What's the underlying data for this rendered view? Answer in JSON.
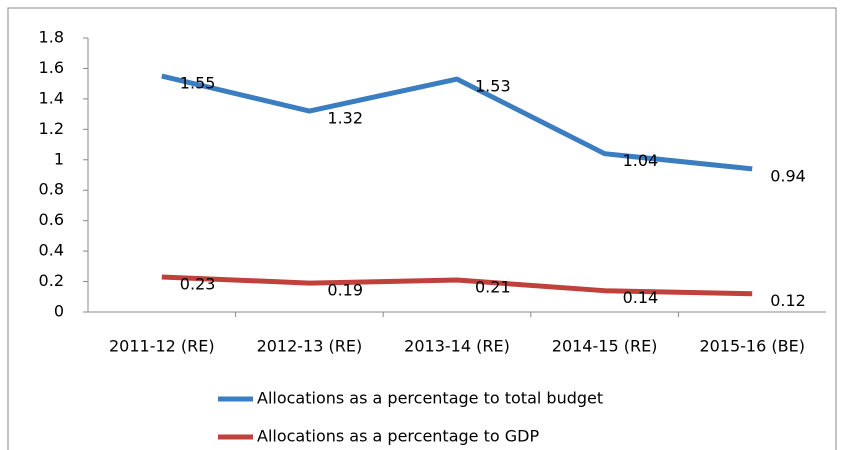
{
  "chart_data": {
    "type": "line",
    "categories": [
      "2011-12 (RE)",
      "2012-13 (RE)",
      "2013-14 (RE)",
      "2014-15 (RE)",
      "2015-16 (BE)"
    ],
    "series": [
      {
        "name": "Allocations as a percentage to total budget",
        "color": "#3a7dc0",
        "values": [
          1.55,
          1.32,
          1.53,
          1.04,
          0.94
        ]
      },
      {
        "name": "Allocations as a percentage to GDP",
        "color": "#c0403c",
        "values": [
          0.23,
          0.19,
          0.21,
          0.14,
          0.12
        ]
      }
    ],
    "ylim": [
      0,
      1.8
    ],
    "yticks": [
      0,
      0.2,
      0.4,
      0.6,
      0.8,
      1,
      1.2,
      1.4,
      1.6,
      1.8
    ],
    "grid": false,
    "legend": "bottom",
    "data_labels": true
  }
}
